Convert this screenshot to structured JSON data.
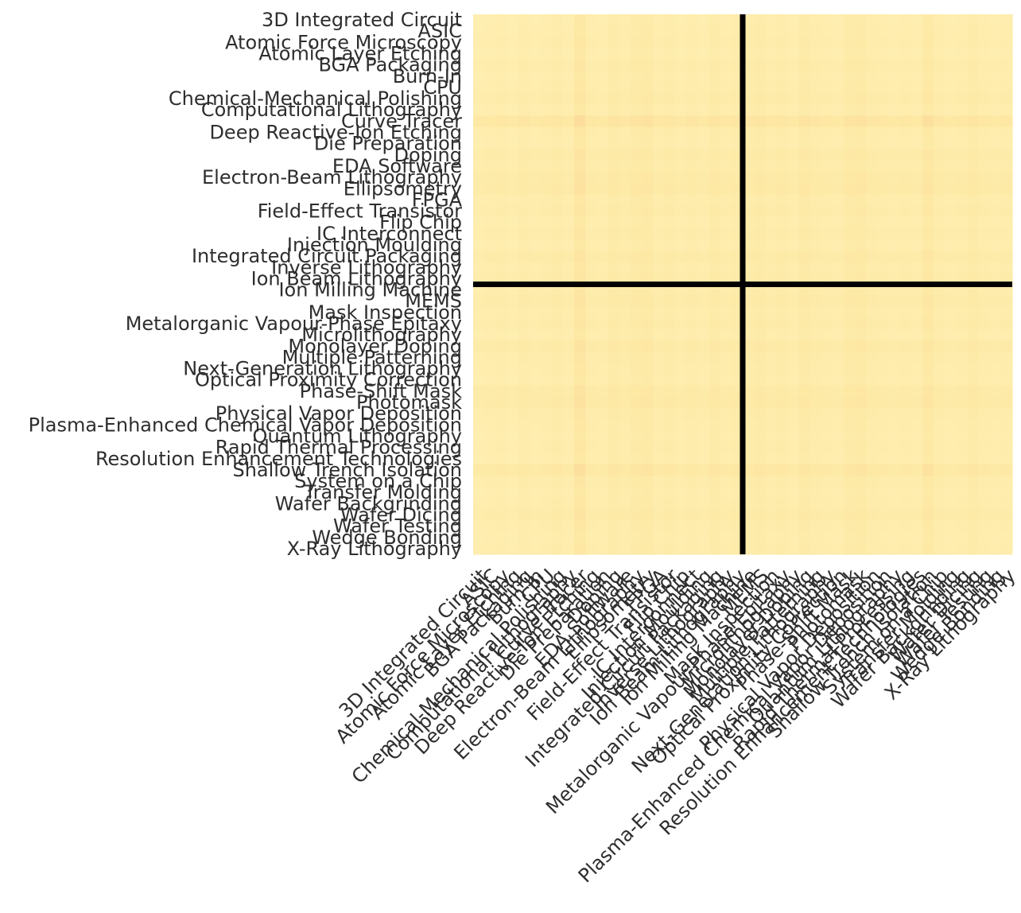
{
  "chart_data": {
    "type": "heatmap",
    "title": "",
    "xlabel": "",
    "ylabel": "",
    "colormap": "YlOrRd",
    "colors": {
      "low": "#fff5c0",
      "mid": "#fde9a5",
      "high": "#fbc98a",
      "divider": "#000000"
    },
    "grid": false,
    "legend": "none",
    "divider_after_index": 23,
    "value_range": [
      0,
      1
    ],
    "labels": [
      "3D Integrated Circuit",
      "ASIC",
      "Atomic Force Microscopy",
      "Atomic Layer Etching",
      "BGA Packaging",
      "Burn-In",
      "CPU",
      "Chemical-Mechanical Polishing",
      "Computational Lithography",
      "Curve Tracer",
      "Deep Reactive-Ion Etching",
      "Die Preparation",
      "Doping",
      "EDA Software",
      "Electron-Beam Lithography",
      "Ellipsometry",
      "FPGA",
      "Field-Effect Transistor",
      "Flip Chip",
      "IC Interconnect",
      "Injection Moulding",
      "Integrated Circuit Packaging",
      "Inverse Lithography",
      "Ion Beam Lithography",
      "Ion Milling Machine",
      "MEMS",
      "Mask Inspection",
      "Metalorganic Vapour-Phase Epitaxy",
      "Microlithography",
      "Monolayer Doping",
      "Multiple Patterning",
      "Next-Generation Lithography",
      "Optical Proximity Correction",
      "Phase-Shift Mask",
      "Photomask",
      "Physical Vapor Deposition",
      "Plasma-Enhanced Chemical Vapor Deposition",
      "Quantum Lithography",
      "Rapid Thermal Processing",
      "Resolution Enhancement Technologies",
      "Shallow Trench Isolation",
      "System on a Chip",
      "Transfer Molding",
      "Wafer Backgrinding",
      "Wafer Dicing",
      "Wafer Testing",
      "Wedge Bonding",
      "X-Ray Lithography"
    ],
    "row_intensity": [
      0.08,
      0.1,
      0.12,
      0.08,
      0.14,
      0.1,
      0.12,
      0.16,
      0.1,
      0.3,
      0.12,
      0.1,
      0.18,
      0.14,
      0.2,
      0.22,
      0.12,
      0.16,
      0.1,
      0.14,
      0.1,
      0.18,
      0.12,
      0.16,
      0.14,
      0.18,
      0.12,
      0.16,
      0.1,
      0.2,
      0.14,
      0.12,
      0.1,
      0.2,
      0.22,
      0.14,
      0.12,
      0.1,
      0.12,
      0.1,
      0.26,
      0.14,
      0.1,
      0.12,
      0.18,
      0.12,
      0.1,
      0.12
    ],
    "col_intensity": [
      0.08,
      0.1,
      0.12,
      0.08,
      0.14,
      0.1,
      0.12,
      0.16,
      0.1,
      0.3,
      0.12,
      0.1,
      0.18,
      0.14,
      0.2,
      0.22,
      0.12,
      0.16,
      0.1,
      0.14,
      0.1,
      0.18,
      0.12,
      0.16,
      0.14,
      0.18,
      0.12,
      0.16,
      0.1,
      0.2,
      0.14,
      0.12,
      0.1,
      0.2,
      0.22,
      0.14,
      0.12,
      0.1,
      0.12,
      0.1,
      0.26,
      0.14,
      0.1,
      0.12,
      0.18,
      0.12,
      0.1,
      0.12
    ]
  }
}
